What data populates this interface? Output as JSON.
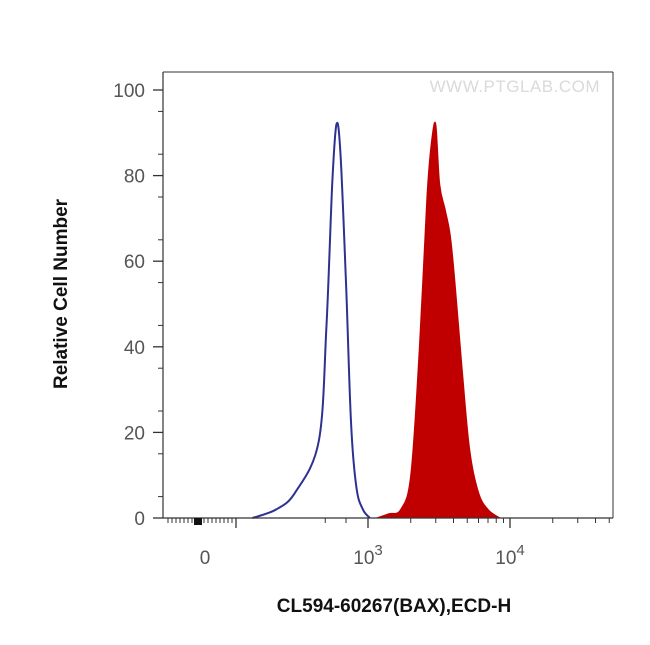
{
  "chart_data": {
    "type": "area",
    "watermark": "WWW.PTGLAB.COM",
    "xlabel": "CL594-60267(BAX),ECD-H",
    "ylabel": "Relative Cell Number",
    "xscale": "biexponential",
    "yticks": [
      0,
      20,
      40,
      60,
      80,
      100
    ],
    "ylim": [
      0,
      100
    ],
    "xticks": [
      {
        "value": 0,
        "label": "0"
      },
      {
        "value": 1000,
        "base": "10",
        "exp": "3"
      },
      {
        "value": 10000,
        "base": "10",
        "exp": "4"
      }
    ],
    "grid": false,
    "series": [
      {
        "style": "outline",
        "color": "#2e3192",
        "points": [
          [
            200,
            0
          ],
          [
            300,
            2
          ],
          [
            380,
            6
          ],
          [
            450,
            18
          ],
          [
            510,
            45
          ],
          [
            560,
            78
          ],
          [
            600,
            92
          ],
          [
            640,
            85
          ],
          [
            700,
            55
          ],
          [
            760,
            22
          ],
          [
            830,
            7
          ],
          [
            920,
            2
          ],
          [
            1030,
            0
          ]
        ]
      },
      {
        "style": "filled",
        "color": "#c00000",
        "points": [
          [
            1150,
            0
          ],
          [
            1400,
            1
          ],
          [
            1700,
            2
          ],
          [
            2000,
            10
          ],
          [
            2300,
            40
          ],
          [
            2600,
            75
          ],
          [
            2800,
            88
          ],
          [
            3000,
            92
          ],
          [
            3200,
            78
          ],
          [
            3500,
            72
          ],
          [
            3800,
            66
          ],
          [
            4100,
            55
          ],
          [
            4600,
            35
          ],
          [
            5200,
            16
          ],
          [
            6000,
            6
          ],
          [
            7000,
            2
          ],
          [
            8500,
            0
          ]
        ]
      }
    ]
  }
}
